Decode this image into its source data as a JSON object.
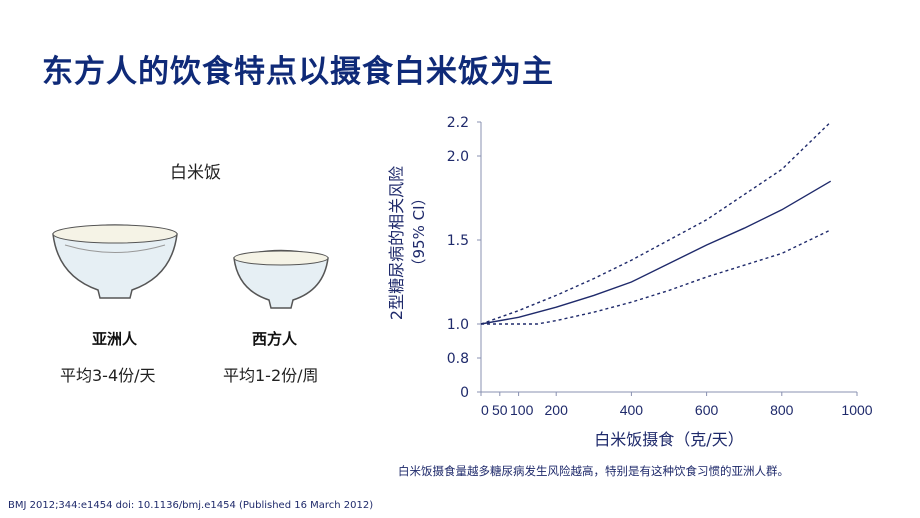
{
  "title": "东方人的饮食特点以摄食白米饭为主",
  "left": {
    "heading": "白米饭",
    "asia": {
      "label": "亚洲人",
      "freq": "平均3-4份/天"
    },
    "west": {
      "label": "西方人",
      "freq": "平均1-2份/周"
    }
  },
  "note": "白米饭摄食量越多糖尿病发生风险越高，特别是有这种饮食习惯的亚洲人群。",
  "reference": "BMJ 2012;344:e1454 doi: 10.1136/bmj.e1454 (Published 16 March 2012)",
  "chart_data": {
    "type": "line",
    "xlabel": "白米饭摄食（克/天）",
    "ylabel": "2型糖尿病的相关风险",
    "ylabel2": "（95% CI）",
    "xticks": [
      0,
      50,
      100,
      200,
      400,
      600,
      800,
      1000
    ],
    "xtick_labels": [
      "0",
      "50",
      "100",
      "200",
      "400",
      "600",
      "800",
      "1000"
    ],
    "yticks": [
      0,
      0.8,
      1.0,
      1.5,
      2.0,
      2.2
    ],
    "ytick_labels": [
      "0",
      "0.8",
      "1.0",
      "1.5",
      "2.0",
      "2.2"
    ],
    "xlim": [
      0,
      1000
    ],
    "ylim": [
      0,
      2.2
    ],
    "color": "#1f2a6b",
    "series": [
      {
        "style": "solid",
        "x": [
          0,
          100,
          200,
          300,
          400,
          500,
          600,
          700,
          800,
          930
        ],
        "y": [
          1.0,
          1.04,
          1.1,
          1.17,
          1.25,
          1.36,
          1.47,
          1.57,
          1.68,
          1.85
        ]
      },
      {
        "style": "dotted",
        "x": [
          0,
          100,
          200,
          300,
          400,
          500,
          600,
          700,
          800,
          930
        ],
        "y": [
          1.0,
          1.08,
          1.17,
          1.27,
          1.38,
          1.5,
          1.62,
          1.77,
          1.92,
          2.2
        ]
      },
      {
        "style": "dotted",
        "x": [
          0,
          100,
          150,
          200,
          300,
          400,
          500,
          600,
          700,
          800,
          930
        ],
        "y": [
          1.0,
          1.0,
          1.0,
          1.02,
          1.07,
          1.13,
          1.2,
          1.28,
          1.35,
          1.42,
          1.56
        ]
      }
    ]
  }
}
